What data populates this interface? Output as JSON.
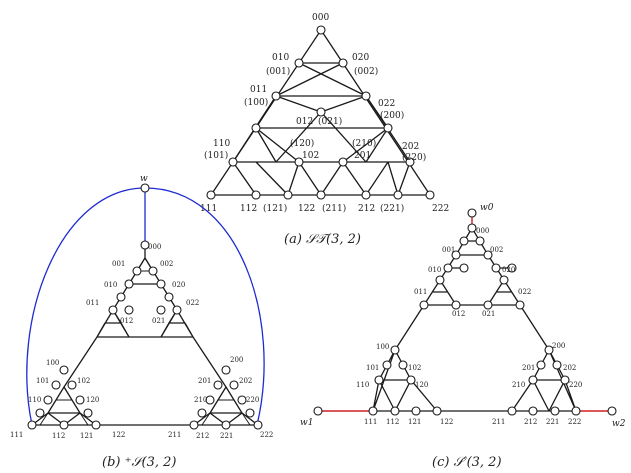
{
  "panels": [
    {
      "id": "a",
      "caption": "(a) 𝒮𝒯(3, 2)",
      "labels": [
        "000",
        "010",
        "(001)",
        "020",
        "(002)",
        "011",
        "(100)",
        "012",
        "(021)",
        "022",
        "(200)",
        "110",
        "(101)",
        "(120)",
        "102",
        "(210)",
        "201",
        "202",
        "(220)",
        "111",
        "112",
        "(121)",
        "122",
        "(211)",
        "212",
        "(221)",
        "222"
      ]
    },
    {
      "id": "b",
      "caption": "(b) ⁺𝒮(3, 2)",
      "labels": [
        "w",
        "000",
        "001",
        "002",
        "010",
        "020",
        "011",
        "012",
        "021",
        "022",
        "100",
        "200",
        "101",
        "102",
        "201",
        "202",
        "110",
        "120",
        "210",
        "220",
        "111",
        "112",
        "121",
        "122",
        "211",
        "212",
        "221",
        "222"
      ]
    },
    {
      "id": "c",
      "caption": "(c) 𝒮′(3, 2)",
      "labels": [
        "w0",
        "000",
        "001",
        "002",
        "010",
        "020",
        "011",
        "012",
        "021",
        "022",
        "100",
        "200",
        "101",
        "102",
        "201",
        "202",
        "110",
        "120",
        "210",
        "220",
        "w1",
        "111",
        "112",
        "121",
        "122",
        "211",
        "212",
        "221",
        "222",
        "w2"
      ]
    }
  ],
  "colors": {
    "edge": "#1a1a1a",
    "blue_edge": "#1f2bd0",
    "red_edge": "#d02020",
    "node_fill": "#ffffff"
  }
}
